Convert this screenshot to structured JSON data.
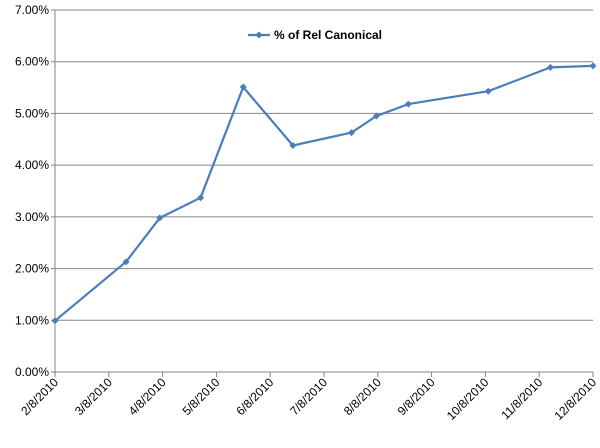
{
  "chart_data": {
    "type": "line",
    "title": "",
    "xlabel": "",
    "ylabel": "",
    "x_ticks": [
      "2/8/2010",
      "3/8/2010",
      "4/8/2010",
      "5/8/2010",
      "6/8/2010",
      "7/8/2010",
      "8/8/2010",
      "9/8/2010",
      "10/8/2010",
      "11/8/2010",
      "12/8/2010"
    ],
    "y_ticks": [
      "0.00%",
      "1.00%",
      "2.00%",
      "3.00%",
      "4.00%",
      "5.00%",
      "6.00%",
      "7.00%"
    ],
    "xlim": [
      "2010-02-08",
      "2010-12-08"
    ],
    "ylim": [
      0,
      0.07
    ],
    "grid": "horizontal",
    "legend_position": "top-center",
    "series": [
      {
        "name": "% of Rel Canonical",
        "color": "#4a7ebb",
        "marker": "diamond",
        "points": [
          {
            "x": "2010-02-08",
            "y": 0.0099
          },
          {
            "x": "2010-03-20",
            "y": 0.0213
          },
          {
            "x": "2010-04-08",
            "y": 0.0298
          },
          {
            "x": "2010-05-01",
            "y": 0.0337
          },
          {
            "x": "2010-05-25",
            "y": 0.0551
          },
          {
            "x": "2010-06-22",
            "y": 0.0438
          },
          {
            "x": "2010-07-25",
            "y": 0.0463
          },
          {
            "x": "2010-08-08",
            "y": 0.0495
          },
          {
            "x": "2010-08-26",
            "y": 0.0518
          },
          {
            "x": "2010-10-10",
            "y": 0.0543
          },
          {
            "x": "2010-11-14",
            "y": 0.0589
          },
          {
            "x": "2010-12-08",
            "y": 0.0592
          }
        ]
      }
    ]
  }
}
